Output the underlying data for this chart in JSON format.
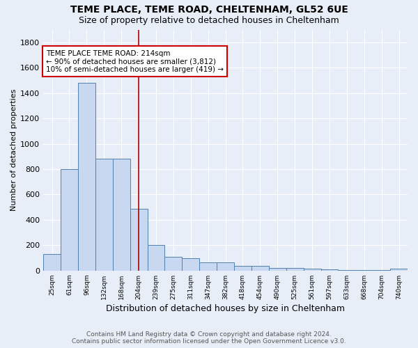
{
  "title": "TEME PLACE, TEME ROAD, CHELTENHAM, GL52 6UE",
  "subtitle": "Size of property relative to detached houses in Cheltenham",
  "xlabel": "Distribution of detached houses by size in Cheltenham",
  "ylabel": "Number of detached properties",
  "footer_line1": "Contains HM Land Registry data © Crown copyright and database right 2024.",
  "footer_line2": "Contains public sector information licensed under the Open Government Licence v3.0.",
  "bin_labels": [
    "25sqm",
    "61sqm",
    "96sqm",
    "132sqm",
    "168sqm",
    "204sqm",
    "239sqm",
    "275sqm",
    "311sqm",
    "347sqm",
    "382sqm",
    "418sqm",
    "454sqm",
    "490sqm",
    "525sqm",
    "561sqm",
    "597sqm",
    "633sqm",
    "668sqm",
    "704sqm",
    "740sqm"
  ],
  "bar_heights": [
    130,
    800,
    1480,
    880,
    880,
    490,
    200,
    110,
    100,
    65,
    65,
    35,
    35,
    20,
    20,
    15,
    10,
    5,
    5,
    5,
    15
  ],
  "bar_color": "#c8d8f0",
  "bar_edge_color": "#5080b0",
  "red_line_index": 5.5,
  "red_line_color": "#aa0000",
  "annotation_text": "TEME PLACE TEME ROAD: 214sqm\n← 90% of detached houses are smaller (3,812)\n10% of semi-detached houses are larger (419) →",
  "annotation_box_color": "#ffffff",
  "annotation_box_edge_color": "#cc0000",
  "ylim": [
    0,
    1900
  ],
  "yticks": [
    0,
    200,
    400,
    600,
    800,
    1000,
    1200,
    1400,
    1600,
    1800
  ],
  "background_color": "#e8eef8",
  "grid_color": "#ffffff",
  "title_fontsize": 10,
  "subtitle_fontsize": 9,
  "annotation_fontsize": 7.5,
  "ylabel_fontsize": 8,
  "xlabel_fontsize": 9,
  "footer_fontsize": 6.5
}
